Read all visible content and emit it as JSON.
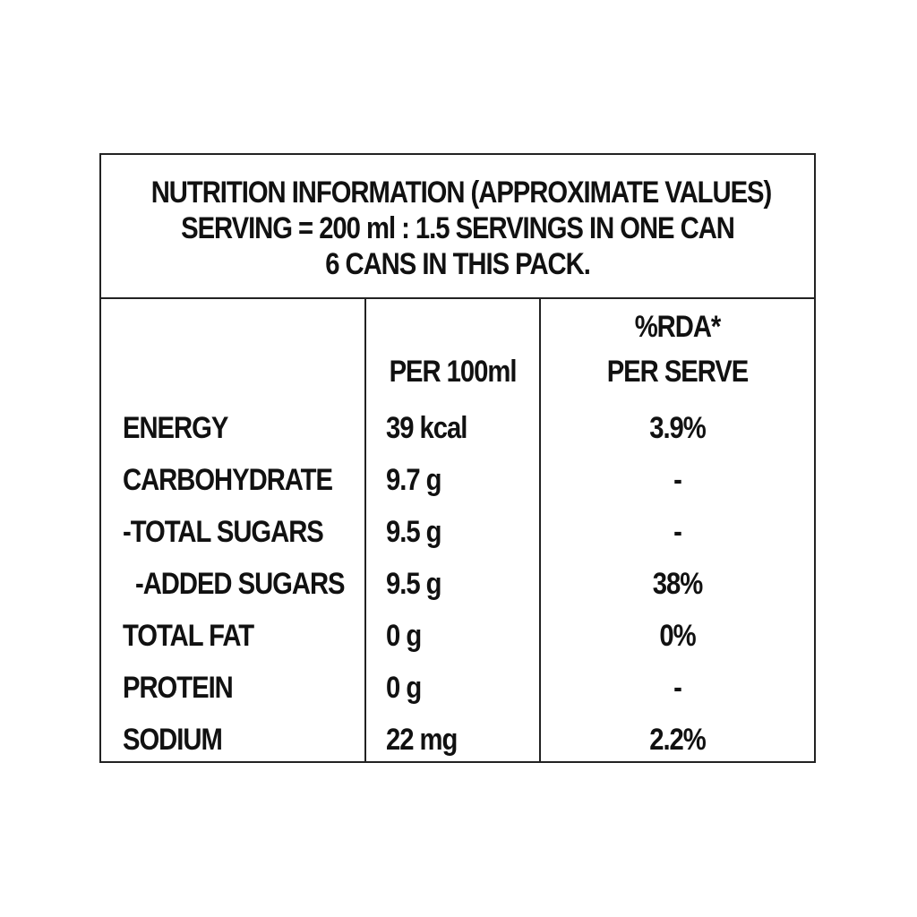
{
  "header": {
    "line1": "NUTRITION INFORMATION (APPROXIMATE VALUES)",
    "line2": "SERVING = 200 ml : 1.5 SERVINGS IN ONE CAN",
    "line3": "6 CANS IN THIS PACK."
  },
  "columns": {
    "per100": "PER 100ml",
    "rda_top": "%RDA*",
    "rda_bottom": "PER SERVE"
  },
  "rows": [
    {
      "name": "ENERGY",
      "per100": "39 kcal",
      "rda": "3.9%"
    },
    {
      "name": "CARBOHYDRATE",
      "per100": "9.7 g",
      "rda": "-"
    },
    {
      "name": "-TOTAL SUGARS",
      "per100": "9.5 g",
      "rda": "-"
    },
    {
      "name": "-ADDED SUGARS",
      "per100": "9.5 g",
      "rda": "38%"
    },
    {
      "name": "TOTAL FAT",
      "per100": "0 g",
      "rda": "0%"
    },
    {
      "name": "PROTEIN",
      "per100": "0 g",
      "rda": "-"
    },
    {
      "name": "SODIUM",
      "per100": "22 mg",
      "rda": "2.2%"
    }
  ]
}
